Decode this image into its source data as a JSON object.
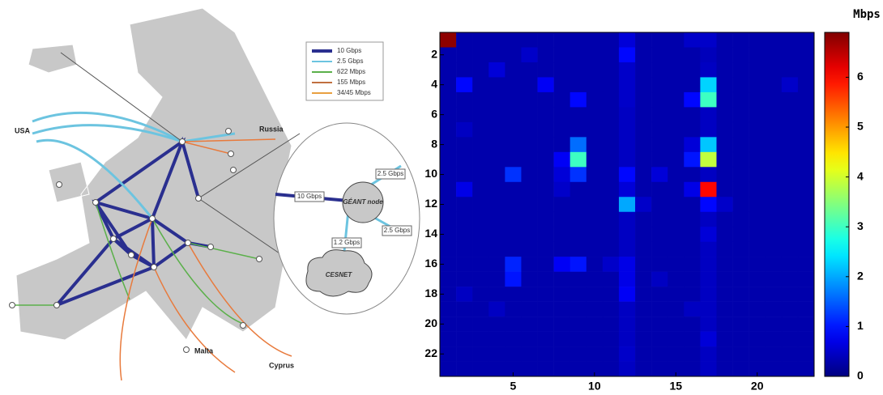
{
  "chart_data": {
    "type": "heatmap",
    "colormap": "jet",
    "colorbar_label": "Mbps",
    "xlim": [
      0.5,
      23.5
    ],
    "ylim": [
      0.5,
      23.5
    ],
    "xticks": [
      5,
      10,
      15,
      20
    ],
    "yticks": [
      2,
      4,
      6,
      8,
      10,
      12,
      14,
      16,
      18,
      20,
      22
    ],
    "zlim": [
      0,
      6.9
    ],
    "zticks": [
      0,
      1,
      2,
      3,
      4,
      5,
      6
    ],
    "z": [
      [
        6.8,
        0.3,
        0.3,
        0.3,
        0.3,
        0.3,
        0.3,
        0.3,
        0.3,
        0.3,
        0.3,
        0.6,
        0.3,
        0.3,
        0.3,
        0.5,
        0.5,
        0.3,
        0.3,
        0.3,
        0.3,
        0.3,
        0.3
      ],
      [
        0.3,
        0.3,
        0.3,
        0.3,
        0.3,
        0.5,
        0.3,
        0.3,
        0.3,
        0.3,
        0.3,
        0.9,
        0.3,
        0.3,
        0.3,
        0.3,
        0.4,
        0.3,
        0.3,
        0.3,
        0.3,
        0.3,
        0.3
      ],
      [
        0.3,
        0.3,
        0.3,
        0.6,
        0.3,
        0.3,
        0.3,
        0.3,
        0.3,
        0.3,
        0.3,
        0.5,
        0.3,
        0.3,
        0.3,
        0.3,
        0.45,
        0.3,
        0.3,
        0.3,
        0.3,
        0.3,
        0.3
      ],
      [
        0.3,
        0.9,
        0.3,
        0.3,
        0.3,
        0.3,
        0.8,
        0.3,
        0.3,
        0.3,
        0.3,
        0.5,
        0.3,
        0.3,
        0.3,
        0.3,
        2.3,
        0.3,
        0.3,
        0.3,
        0.3,
        0.5,
        0.3
      ],
      [
        0.3,
        0.3,
        0.3,
        0.3,
        0.3,
        0.3,
        0.3,
        0.3,
        0.9,
        0.3,
        0.3,
        0.5,
        0.3,
        0.3,
        0.3,
        0.9,
        3.0,
        0.3,
        0.3,
        0.3,
        0.3,
        0.3,
        0.3
      ],
      [
        0.3,
        0.3,
        0.3,
        0.3,
        0.3,
        0.3,
        0.3,
        0.3,
        0.3,
        0.3,
        0.3,
        0.45,
        0.3,
        0.3,
        0.3,
        0.3,
        0.45,
        0.3,
        0.3,
        0.3,
        0.3,
        0.3,
        0.3
      ],
      [
        0.3,
        0.45,
        0.3,
        0.3,
        0.3,
        0.3,
        0.3,
        0.3,
        0.3,
        0.3,
        0.3,
        0.45,
        0.3,
        0.3,
        0.3,
        0.3,
        0.45,
        0.3,
        0.3,
        0.3,
        0.3,
        0.3,
        0.3
      ],
      [
        0.3,
        0.3,
        0.3,
        0.3,
        0.3,
        0.3,
        0.3,
        0.3,
        1.6,
        0.3,
        0.3,
        0.45,
        0.3,
        0.3,
        0.3,
        0.6,
        2.2,
        0.3,
        0.3,
        0.3,
        0.3,
        0.3,
        0.3
      ],
      [
        0.3,
        0.3,
        0.3,
        0.3,
        0.3,
        0.3,
        0.3,
        0.8,
        3.0,
        0.3,
        0.3,
        0.45,
        0.3,
        0.3,
        0.3,
        1.0,
        3.9,
        0.3,
        0.3,
        0.3,
        0.3,
        0.3,
        0.3
      ],
      [
        0.3,
        0.3,
        0.3,
        0.3,
        1.2,
        0.3,
        0.3,
        0.6,
        1.2,
        0.3,
        0.3,
        0.9,
        0.3,
        0.6,
        0.3,
        0.3,
        0.45,
        0.3,
        0.3,
        0.3,
        0.3,
        0.3,
        0.3
      ],
      [
        0.3,
        0.7,
        0.3,
        0.3,
        0.3,
        0.3,
        0.3,
        0.5,
        0.3,
        0.3,
        0.3,
        0.6,
        0.3,
        0.3,
        0.3,
        0.7,
        6.0,
        0.3,
        0.3,
        0.3,
        0.3,
        0.3,
        0.3
      ],
      [
        0.3,
        0.3,
        0.3,
        0.3,
        0.3,
        0.3,
        0.3,
        0.3,
        0.3,
        0.3,
        0.3,
        2.0,
        0.5,
        0.3,
        0.3,
        0.3,
        0.9,
        0.5,
        0.3,
        0.3,
        0.3,
        0.3,
        0.3
      ],
      [
        0.3,
        0.3,
        0.3,
        0.3,
        0.3,
        0.3,
        0.3,
        0.3,
        0.3,
        0.3,
        0.3,
        0.45,
        0.3,
        0.3,
        0.3,
        0.3,
        0.45,
        0.3,
        0.3,
        0.3,
        0.3,
        0.3,
        0.3
      ],
      [
        0.3,
        0.3,
        0.3,
        0.3,
        0.3,
        0.3,
        0.3,
        0.3,
        0.3,
        0.3,
        0.3,
        0.45,
        0.3,
        0.3,
        0.3,
        0.3,
        0.6,
        0.3,
        0.3,
        0.3,
        0.3,
        0.3,
        0.3
      ],
      [
        0.3,
        0.3,
        0.3,
        0.3,
        0.3,
        0.3,
        0.3,
        0.3,
        0.3,
        0.3,
        0.3,
        0.45,
        0.3,
        0.3,
        0.3,
        0.3,
        0.45,
        0.3,
        0.3,
        0.3,
        0.3,
        0.3,
        0.3
      ],
      [
        0.3,
        0.3,
        0.3,
        0.3,
        1.1,
        0.3,
        0.3,
        0.8,
        1.0,
        0.3,
        0.5,
        0.7,
        0.3,
        0.3,
        0.3,
        0.3,
        0.45,
        0.3,
        0.3,
        0.3,
        0.3,
        0.3,
        0.3
      ],
      [
        0.3,
        0.3,
        0.3,
        0.3,
        1.0,
        0.3,
        0.3,
        0.3,
        0.3,
        0.3,
        0.3,
        0.7,
        0.3,
        0.45,
        0.3,
        0.3,
        0.45,
        0.3,
        0.3,
        0.3,
        0.3,
        0.3,
        0.3
      ],
      [
        0.3,
        0.45,
        0.3,
        0.3,
        0.3,
        0.3,
        0.3,
        0.3,
        0.3,
        0.3,
        0.3,
        0.8,
        0.3,
        0.3,
        0.3,
        0.3,
        0.45,
        0.3,
        0.3,
        0.3,
        0.3,
        0.3,
        0.3
      ],
      [
        0.3,
        0.3,
        0.3,
        0.45,
        0.3,
        0.3,
        0.3,
        0.3,
        0.3,
        0.3,
        0.3,
        0.45,
        0.3,
        0.3,
        0.3,
        0.45,
        0.45,
        0.3,
        0.3,
        0.3,
        0.3,
        0.3,
        0.3
      ],
      [
        0.3,
        0.3,
        0.3,
        0.3,
        0.3,
        0.3,
        0.3,
        0.3,
        0.3,
        0.3,
        0.3,
        0.45,
        0.3,
        0.3,
        0.3,
        0.3,
        0.45,
        0.3,
        0.3,
        0.3,
        0.3,
        0.3,
        0.3
      ],
      [
        0.3,
        0.3,
        0.3,
        0.3,
        0.3,
        0.3,
        0.3,
        0.3,
        0.3,
        0.3,
        0.3,
        0.45,
        0.3,
        0.3,
        0.3,
        0.3,
        0.6,
        0.3,
        0.3,
        0.3,
        0.3,
        0.3,
        0.3
      ],
      [
        0.3,
        0.3,
        0.3,
        0.3,
        0.3,
        0.3,
        0.3,
        0.3,
        0.3,
        0.3,
        0.3,
        0.5,
        0.3,
        0.3,
        0.3,
        0.3,
        0.45,
        0.3,
        0.3,
        0.3,
        0.3,
        0.3,
        0.3
      ],
      [
        0.3,
        0.3,
        0.3,
        0.3,
        0.3,
        0.3,
        0.3,
        0.3,
        0.3,
        0.3,
        0.3,
        0.45,
        0.3,
        0.3,
        0.3,
        0.3,
        0.45,
        0.3,
        0.3,
        0.3,
        0.3,
        0.3,
        0.3
      ]
    ]
  },
  "map": {
    "legend": [
      "10 Gbps",
      "2.5 Gbps",
      "622 Mbps",
      "155 Mbps",
      "34/45 Mbps"
    ],
    "places": [
      "USA",
      "Russia",
      "Malta",
      "Cyprus"
    ],
    "node": "GÉANT node",
    "cloud": "CESNET",
    "links": [
      "10 Gbps",
      "2.5 Gbps",
      "2.5 Gbps",
      "1.2 Gbps"
    ]
  }
}
